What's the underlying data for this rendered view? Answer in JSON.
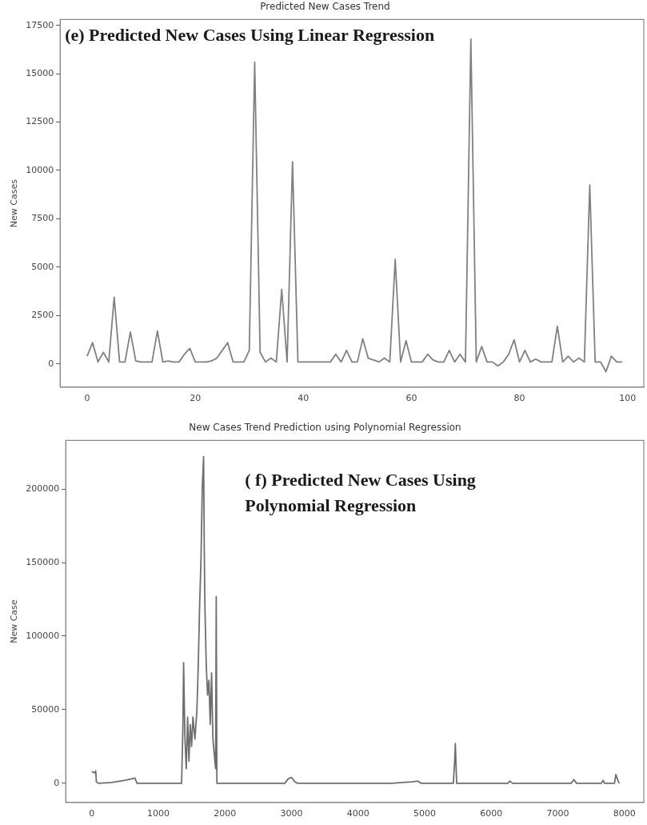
{
  "chart_data": [
    {
      "type": "line",
      "title": "Predicted New Cases Trend",
      "ylabel": "New Cases",
      "annotations": [
        "(e) Predicted New Cases Using Linear Regression"
      ],
      "x": [
        0,
        1,
        2,
        3,
        4,
        5,
        6,
        7,
        8,
        9,
        10,
        11,
        12,
        13,
        14,
        15,
        16,
        17,
        18,
        19,
        20,
        21,
        22,
        23,
        24,
        25,
        26,
        27,
        28,
        29,
        30,
        31,
        32,
        33,
        34,
        35,
        36,
        37,
        38,
        39,
        40,
        41,
        42,
        43,
        44,
        45,
        46,
        47,
        48,
        49,
        50,
        51,
        52,
        53,
        54,
        55,
        56,
        57,
        58,
        59,
        60,
        61,
        62,
        63,
        64,
        65,
        66,
        67,
        68,
        69,
        70,
        71,
        72,
        73,
        74,
        75,
        76,
        77,
        78,
        79,
        80,
        81,
        82,
        83,
        84,
        85,
        86,
        87,
        88,
        89,
        90,
        91,
        92,
        93,
        94,
        95,
        96,
        97,
        98,
        99
      ],
      "series": [
        {
          "color": "#808080",
          "values": [
            400,
            1100,
            100,
            600,
            100,
            3450,
            100,
            100,
            1650,
            150,
            100,
            100,
            100,
            1700,
            100,
            150,
            100,
            100,
            500,
            800,
            100,
            100,
            100,
            150,
            300,
            700,
            1100,
            100,
            100,
            100,
            700,
            15600,
            600,
            100,
            300,
            100,
            3850,
            100,
            10450,
            100,
            100,
            100,
            100,
            100,
            100,
            100,
            500,
            100,
            700,
            100,
            100,
            1300,
            300,
            200,
            100,
            300,
            100,
            5400,
            100,
            1200,
            100,
            100,
            100,
            500,
            200,
            100,
            100,
            700,
            100,
            500,
            100,
            16800,
            100,
            900,
            100,
            100,
            -100,
            100,
            500,
            1250,
            100,
            700,
            100,
            250,
            100,
            100,
            100,
            1950,
            100,
            400,
            100,
            300,
            100,
            9250,
            100,
            100,
            -400,
            400,
            100,
            100
          ]
        }
      ],
      "xlim": [
        -5,
        103
      ],
      "xticks": [
        0,
        20,
        40,
        60,
        80,
        100
      ],
      "ylim": [
        -1200,
        17800
      ],
      "yticks": [
        0,
        2500,
        5000,
        7500,
        10000,
        12500,
        15000,
        17500
      ],
      "grid": false,
      "legend": false,
      "marker": "none",
      "line_style": "solid"
    },
    {
      "type": "line",
      "title": "New Cases Trend Prediction using Polynomial Regression",
      "ylabel": "New Case",
      "annotations": [
        "( f) Predicted New Cases Using",
        "Polynomial Regression"
      ],
      "x": [
        0,
        50,
        60,
        70,
        100,
        300,
        500,
        650,
        680,
        1350,
        1370,
        1380,
        1400,
        1420,
        1440,
        1460,
        1480,
        1500,
        1520,
        1550,
        1580,
        1600,
        1620,
        1640,
        1660,
        1680,
        1690,
        1700,
        1720,
        1740,
        1760,
        1780,
        1800,
        1820,
        1840,
        1860,
        1870,
        1880,
        2900,
        2950,
        3000,
        3050,
        3100,
        4500,
        4800,
        4900,
        4950,
        5430,
        5450,
        5460,
        5480,
        6250,
        6280,
        6320,
        7200,
        7240,
        7280,
        7650,
        7680,
        7700,
        7850,
        7870,
        7900,
        7920
      ],
      "series": [
        {
          "color": "#6e6e6e",
          "values": [
            8000,
            7000,
            8500,
            1000,
            0,
            500,
            2000,
            3500,
            0,
            0,
            40000,
            82000,
            30000,
            10000,
            45000,
            15000,
            40000,
            25000,
            45000,
            30000,
            50000,
            80000,
            120000,
            150000,
            200000,
            222000,
            160000,
            120000,
            80000,
            60000,
            70000,
            40000,
            75000,
            30000,
            20000,
            10000,
            127000,
            0,
            0,
            3000,
            4000,
            1000,
            0,
            0,
            1000,
            1500,
            0,
            0,
            15000,
            27000,
            0,
            0,
            1500,
            0,
            0,
            2500,
            0,
            0,
            2000,
            0,
            0,
            6000,
            2000,
            0
          ]
        }
      ],
      "xlim": [
        -390,
        8290
      ],
      "xticks": [
        0,
        1000,
        2000,
        3000,
        4000,
        5000,
        6000,
        7000,
        8000
      ],
      "ylim": [
        -13000,
        233000
      ],
      "yticks": [
        0,
        50000,
        100000,
        150000,
        200000
      ],
      "grid": false,
      "legend": false,
      "marker": "none",
      "line_style": "solid"
    }
  ]
}
